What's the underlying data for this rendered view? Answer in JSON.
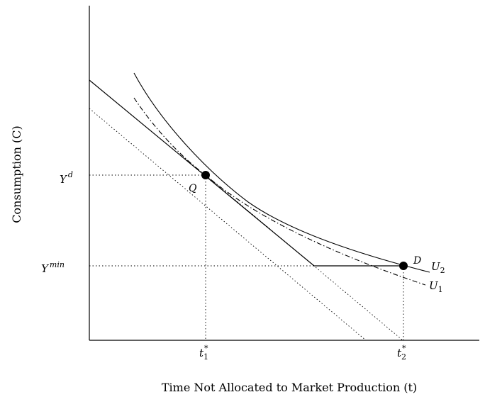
{
  "axes": {
    "y_title": "Consumption (C)",
    "x_title": "Time Not Allocated to Market Production (t)"
  },
  "y_ticks": [
    {
      "base": "Y",
      "sup": "d"
    },
    {
      "base": "Y",
      "sup": "min"
    }
  ],
  "x_ticks": [
    {
      "base": "t",
      "sub": "1",
      "sup": "*"
    },
    {
      "base": "t",
      "sub": "2",
      "sup": "*"
    }
  ],
  "points": [
    {
      "label": "Q"
    },
    {
      "label": "D"
    }
  ],
  "curves": [
    {
      "base": "U",
      "sub": "2"
    },
    {
      "base": "U",
      "sub": "1"
    }
  ],
  "colors": {
    "ink": "#000000",
    "background": "#ffffff"
  }
}
